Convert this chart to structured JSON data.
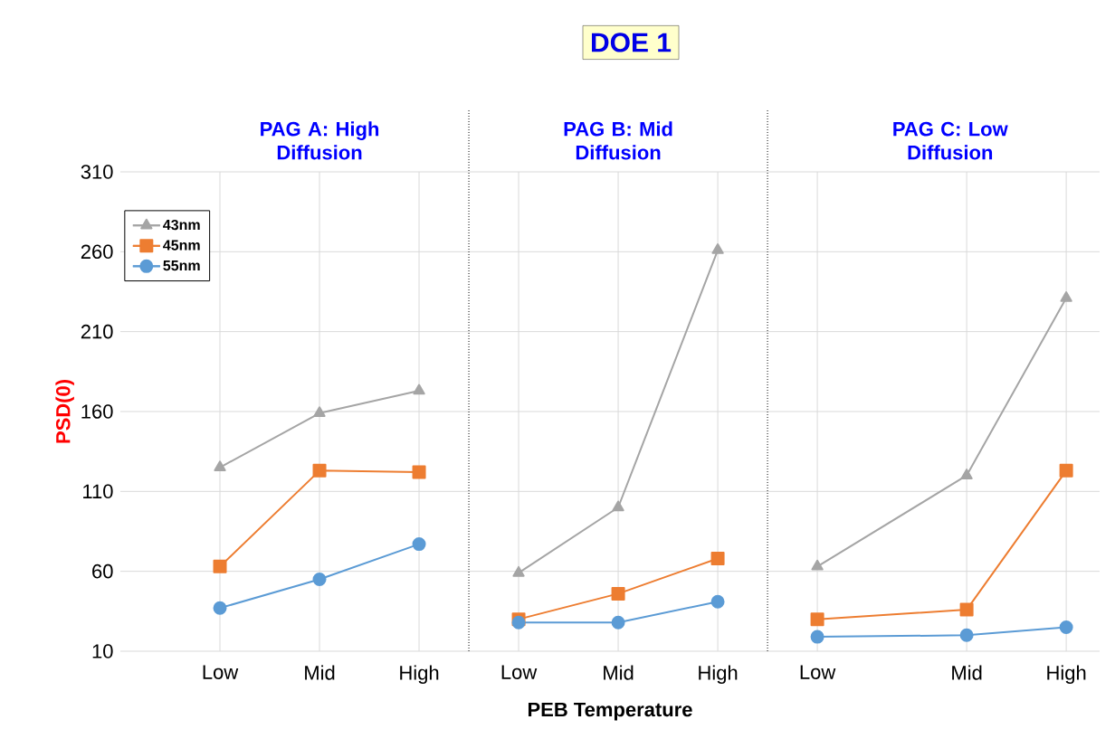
{
  "chart_data": {
    "type": "line",
    "title": "DOE 1",
    "annotations": [
      "PAG A: High Diffusion",
      "PAG B: Mid Diffusion",
      "PAG C: Low Diffusion"
    ],
    "xlabel": "PEB Temperature",
    "ylabel": "PSD(0)",
    "categories": [
      null,
      null,
      "Low",
      null,
      "Mid",
      null,
      "High",
      null,
      "Low",
      null,
      "Mid",
      null,
      "High",
      null,
      "Low",
      null,
      null,
      "Mid",
      null,
      "High"
    ],
    "series": [
      {
        "name": "43nm",
        "color": "#a5a5a5",
        "marker": "triangle",
        "values": [
          null,
          null,
          125,
          null,
          159,
          null,
          173,
          null,
          null,
          null,
          null,
          null,
          null,
          null,
          null,
          null,
          null,
          null,
          null,
          null
        ]
      },
      {
        "name": "45nm",
        "color": "#ed7d31",
        "marker": "square",
        "values": [
          null,
          null,
          63,
          null,
          123,
          null,
          122,
          null,
          null,
          null,
          null,
          null,
          null,
          null,
          null,
          null,
          null,
          null,
          null,
          null
        ]
      },
      {
        "name": "55nm",
        "color": "#5b9bd5",
        "marker": "circle",
        "values": [
          null,
          null,
          37,
          null,
          55,
          null,
          77,
          null,
          null,
          null,
          null,
          null,
          null,
          null,
          null,
          null,
          null,
          null,
          null,
          null
        ]
      },
      {
        "color": "#a5a5a5",
        "marker": "triangle",
        "values": [
          null,
          null,
          null,
          null,
          null,
          null,
          null,
          null,
          59,
          null,
          100,
          null,
          261,
          null,
          null,
          null,
          null,
          null,
          null,
          null
        ]
      },
      {
        "color": "#ed7d31",
        "marker": "square",
        "values": [
          null,
          null,
          null,
          null,
          null,
          null,
          null,
          null,
          30,
          null,
          46,
          null,
          68,
          null,
          null,
          null,
          null,
          null,
          null,
          null
        ]
      },
      {
        "color": "#5b9bd5",
        "marker": "circle",
        "values": [
          null,
          null,
          null,
          null,
          null,
          null,
          null,
          null,
          28,
          null,
          28,
          null,
          41,
          null,
          null,
          null,
          null,
          null,
          null,
          null
        ]
      },
      {
        "color": "#a5a5a5",
        "marker": "triangle",
        "values": [
          null,
          null,
          null,
          null,
          null,
          null,
          null,
          null,
          null,
          null,
          null,
          null,
          null,
          null,
          63,
          null,
          null,
          120,
          null,
          231
        ]
      },
      {
        "color": "#ed7d31",
        "marker": "square",
        "values": [
          null,
          null,
          null,
          null,
          null,
          null,
          null,
          null,
          null,
          null,
          null,
          null,
          null,
          null,
          30,
          null,
          null,
          36,
          null,
          123
        ]
      },
      {
        "color": "#5b9bd5",
        "marker": "circle",
        "values": [
          null,
          null,
          null,
          null,
          null,
          null,
          null,
          null,
          null,
          null,
          null,
          null,
          null,
          null,
          19,
          null,
          null,
          20,
          null,
          25
        ]
      }
    ],
    "ylim": [
      10,
      310
    ],
    "yticks": [
      10,
      60,
      110,
      160,
      210,
      260,
      310
    ],
    "grid": true,
    "legend": "top left",
    "line_style": "solid"
  }
}
